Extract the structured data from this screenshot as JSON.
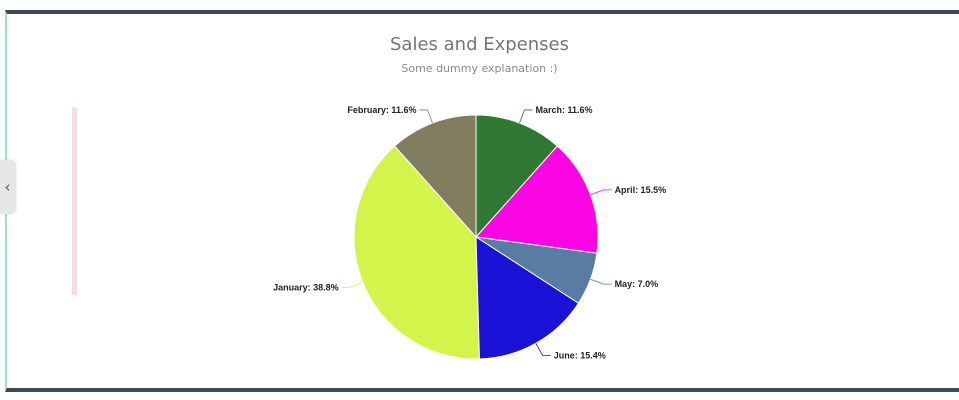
{
  "chart_data": {
    "type": "pie",
    "title": "Sales and Expenses",
    "subtitle": "Some dummy explanation :)",
    "slices": [
      {
        "name": "January",
        "value": 38.8,
        "label": "January: 38.8%",
        "color": "#d3f44a"
      },
      {
        "name": "February",
        "value": 11.6,
        "label": "February: 11.6%",
        "color": "#807e5e"
      },
      {
        "name": "March",
        "value": 11.6,
        "label": "March: 11.6%",
        "color": "#307932"
      },
      {
        "name": "April",
        "value": 15.5,
        "label": "April: 15.5%",
        "color": "#fc05e4"
      },
      {
        "name": "May",
        "value": 7.0,
        "label": "May: 7.0%",
        "color": "#587ca4"
      },
      {
        "name": "June",
        "value": 15.4,
        "label": "June: 15.4%",
        "color": "#1a12d6"
      }
    ]
  },
  "sidebar": {
    "collapse_icon": "chevron-left-icon",
    "collapse_glyph": "‹"
  }
}
